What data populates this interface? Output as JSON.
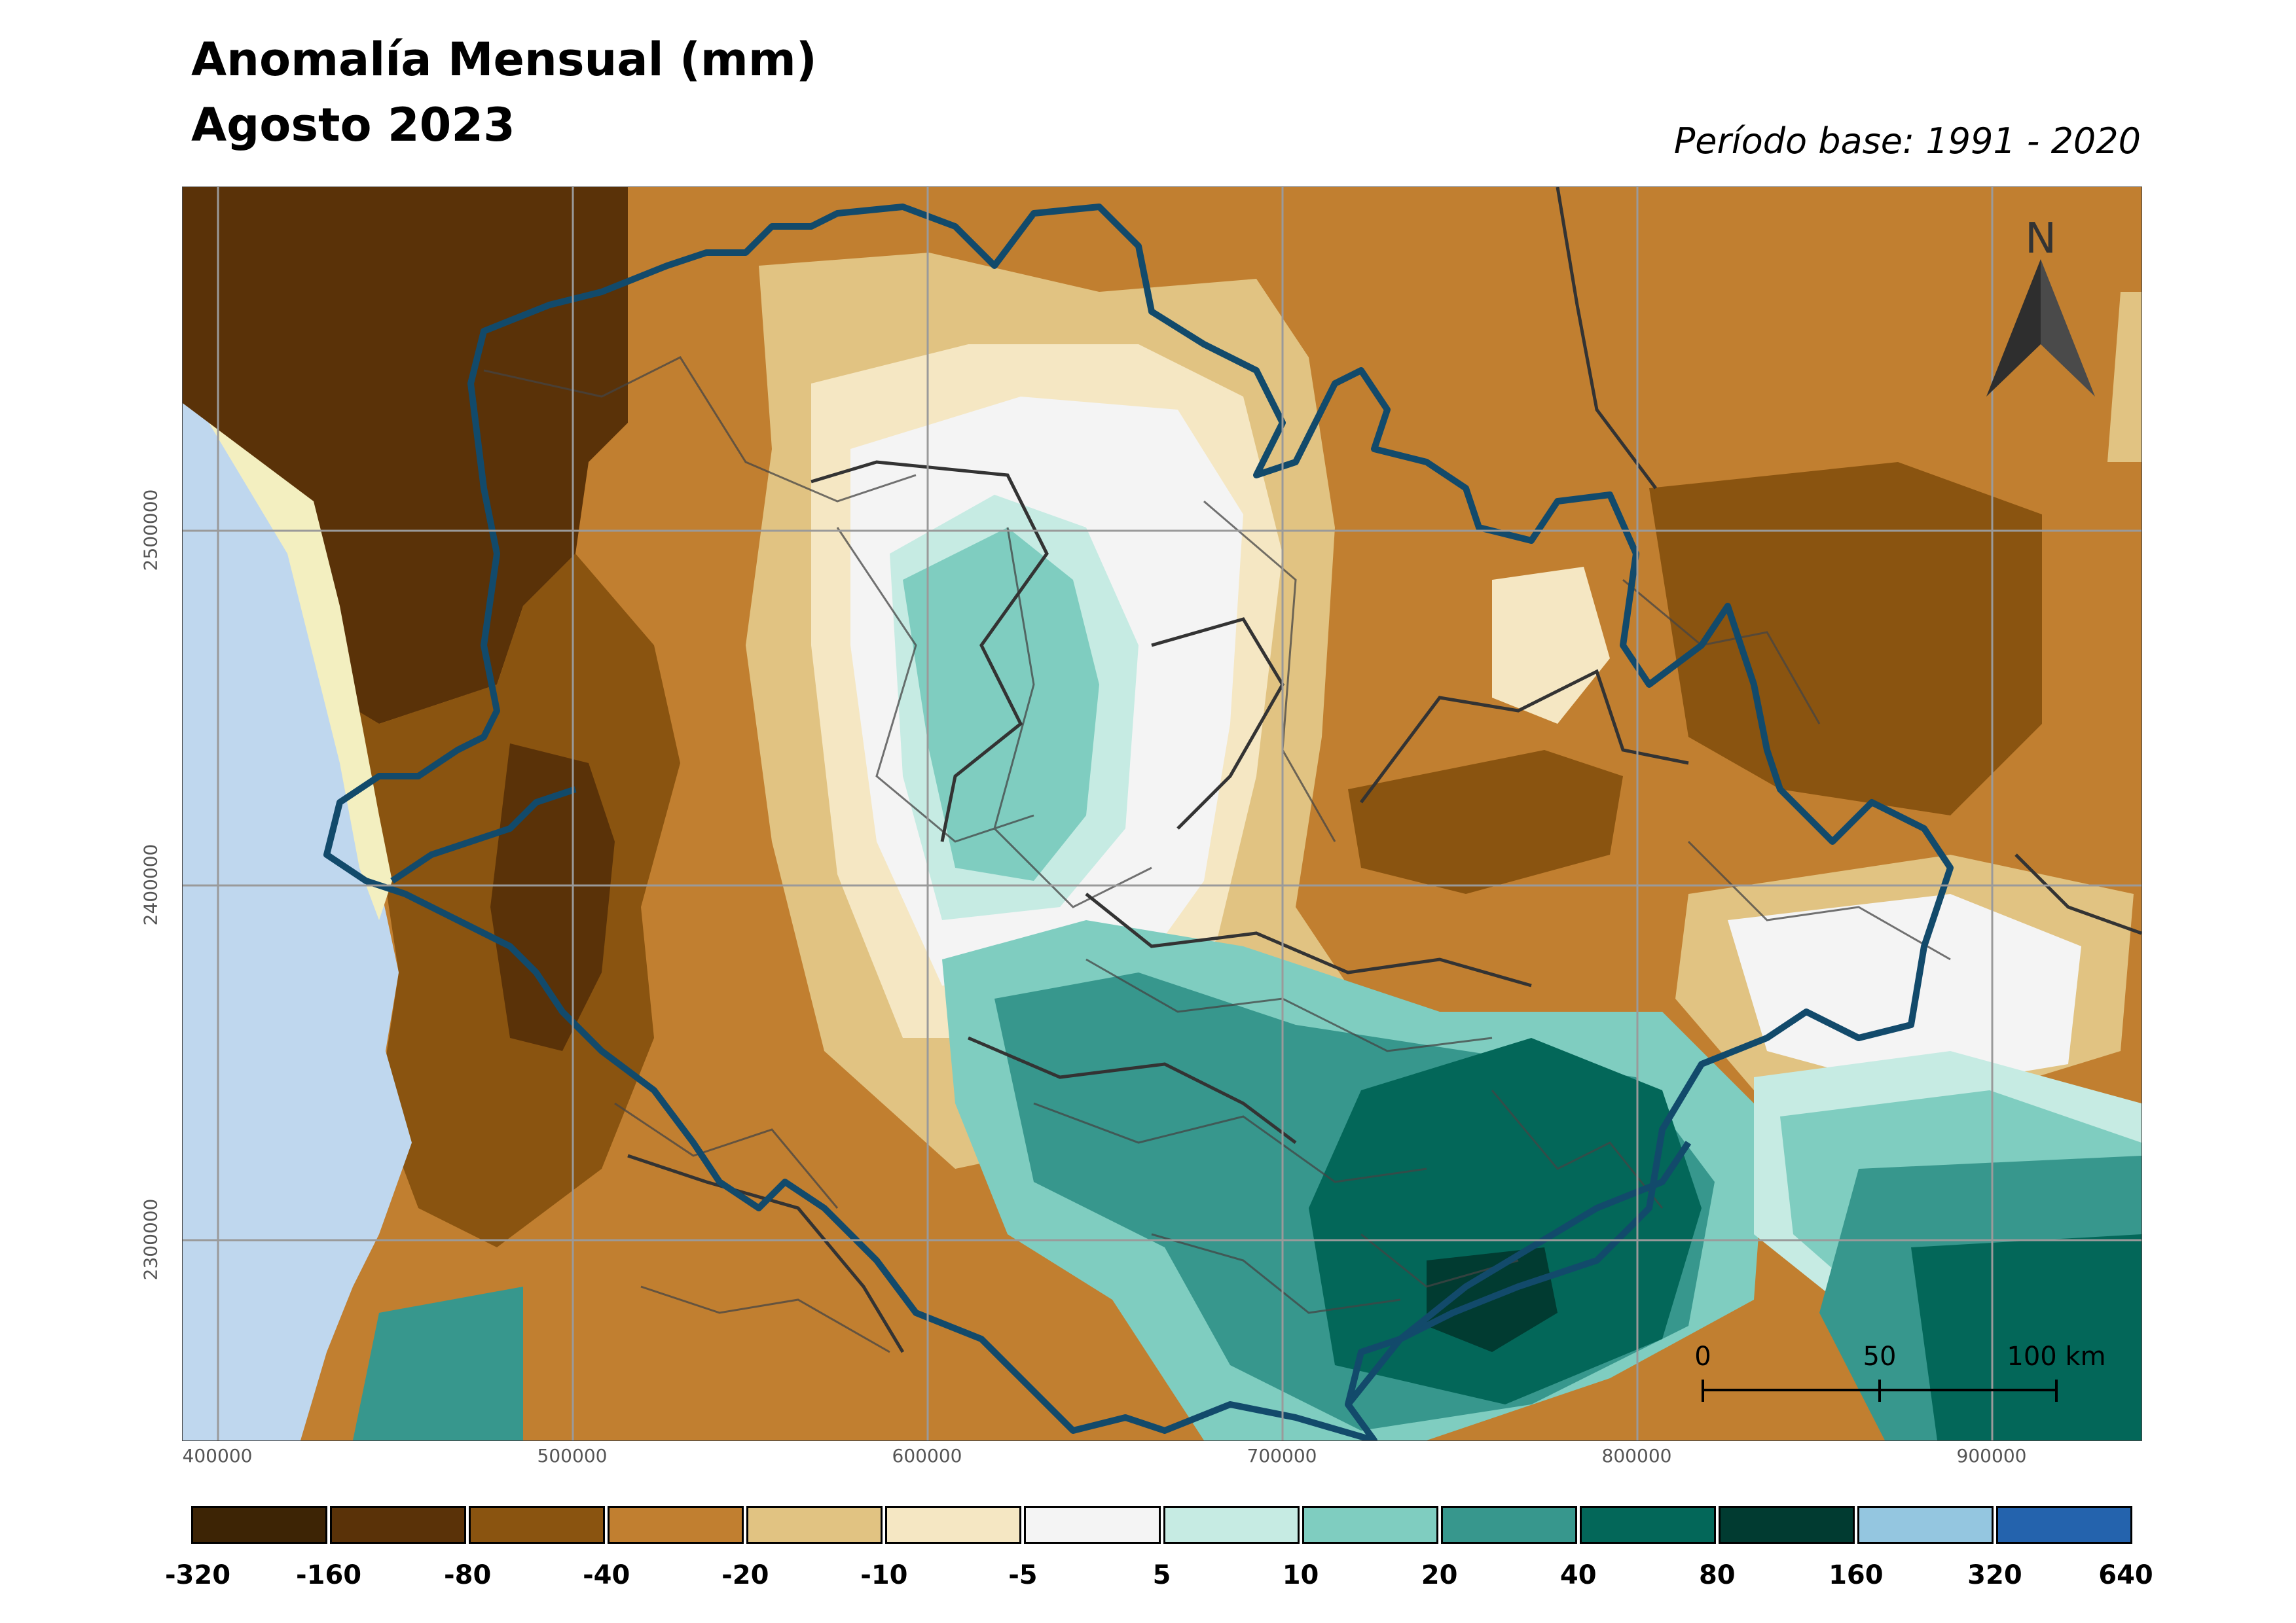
{
  "title": "Anomalía Mensual (mm)",
  "subtitle_date": "Agosto 2023",
  "base_period": "Período base: 1991 - 2020",
  "north_label": "N",
  "scale_bar": {
    "labels": [
      "0",
      "50",
      "100 km"
    ]
  },
  "x_ticks": [
    "400000",
    "500000",
    "600000",
    "700000",
    "800000",
    "900000"
  ],
  "y_ticks": [
    "2500000",
    "2400000",
    "2300000"
  ],
  "legend": {
    "labels": [
      "-320",
      "-160",
      "-80",
      "-40",
      "-20",
      "-10",
      "-5",
      "5",
      "10",
      "20",
      "40",
      "80",
      "160",
      "320",
      "640"
    ],
    "colors": [
      "#3d2405",
      "#5a3208",
      "#8a5410",
      "#c17f30",
      "#e1c382",
      "#f5e7c3",
      "#f4f4f4",
      "#c6ebe3",
      "#7fcdc0",
      "#37978d",
      "#036759",
      "#013b31",
      "#94c6e0",
      "#2463ad"
    ]
  },
  "map_colors": {
    "sea": "#bfd7ee",
    "coast_land": "#f3efc0",
    "state_boundary": "#124a6b",
    "municipal_lines": "#444444"
  }
}
